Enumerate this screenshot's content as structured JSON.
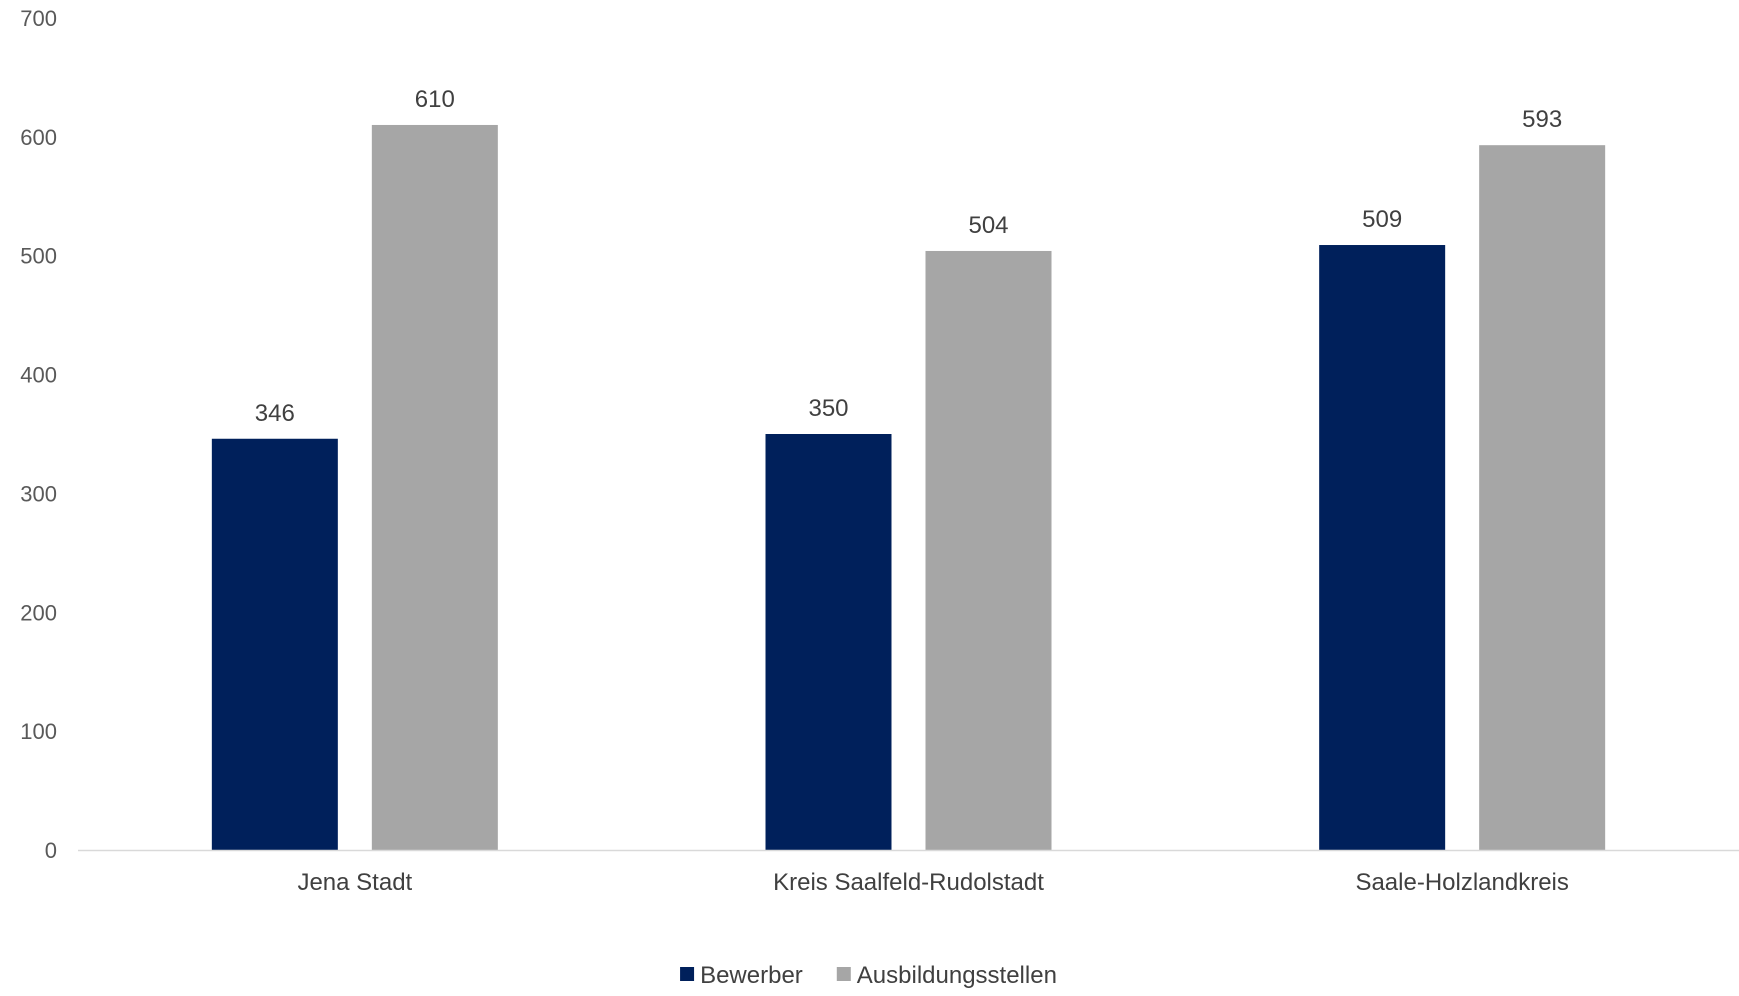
{
  "chart_data": {
    "type": "bar",
    "title": "",
    "xlabel": "",
    "ylabel": "",
    "categories": [
      "Jena Stadt",
      "Kreis Saalfeld-Rudolstadt",
      "Saale-Holzlandkreis"
    ],
    "series": [
      {
        "name": "Bewerber",
        "color": "#00205b",
        "values": [
          346,
          350,
          509
        ]
      },
      {
        "name": "Ausbildungsstellen",
        "color": "#a6a6a6",
        "values": [
          610,
          504,
          593
        ]
      }
    ],
    "ylim": [
      0,
      700
    ],
    "yticks": [
      0,
      100,
      200,
      300,
      400,
      500,
      600,
      700
    ],
    "grid": false,
    "legend": "bottom",
    "data_labels": true,
    "axis_color": "#d9d9d9"
  }
}
